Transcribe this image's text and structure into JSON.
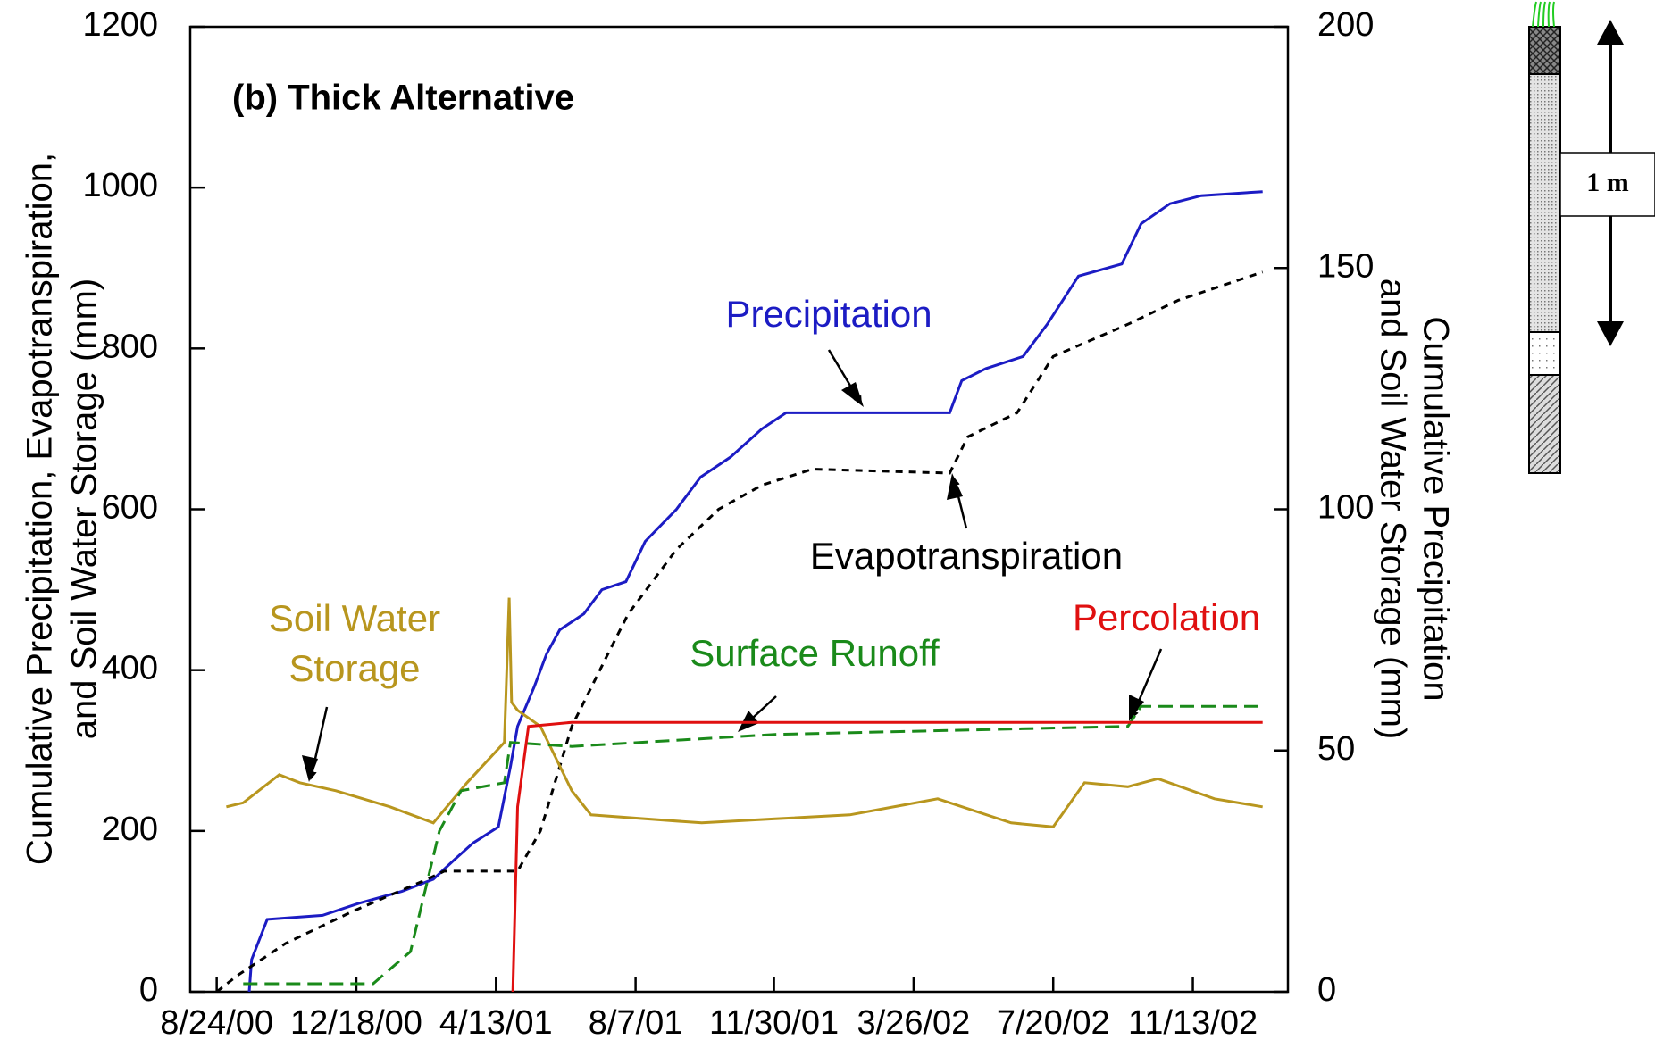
{
  "chart_data": {
    "type": "line",
    "title": "(b) Thick Alternative",
    "y_label_lines": [
      "Cumulative Precipitation, Evapotranspiration,",
      "and Soil Water Storage (mm)"
    ],
    "y2_label_lines": [
      "Cumulative Precipitation",
      "and Soil Water Storage (mm)"
    ],
    "xlim": [
      "2000-08-02",
      "2003-01-31"
    ],
    "xticks": [
      {
        "value": "2000-08-24",
        "label": "8/24/00"
      },
      {
        "value": "2000-12-18",
        "label": "12/18/00"
      },
      {
        "value": "2001-04-13",
        "label": "4/13/01"
      },
      {
        "value": "2001-08-07",
        "label": "8/7/01"
      },
      {
        "value": "2001-11-30",
        "label": "11/30/01"
      },
      {
        "value": "2002-03-26",
        "label": "3/26/02"
      },
      {
        "value": "2002-07-20",
        "label": "7/20/02"
      },
      {
        "value": "2002-11-13",
        "label": "11/13/02"
      }
    ],
    "ylim": [
      0,
      1200
    ],
    "yticks": [
      0,
      200,
      400,
      600,
      800,
      1000,
      1200
    ],
    "y2lim": [
      0,
      200
    ],
    "y2ticks": [
      0,
      50,
      100,
      150,
      200
    ],
    "series": [
      {
        "name": "Precipitation",
        "color": "#1c1cc4",
        "dash": "none",
        "x": [
          "2000-09-20",
          "2000-09-22",
          "2000-10-05",
          "2000-11-20",
          "2000-12-20",
          "2001-01-25",
          "2001-02-20",
          "2001-03-10",
          "2001-03-25",
          "2001-04-15",
          "2001-04-25",
          "2001-05-01",
          "2001-05-15",
          "2001-05-25",
          "2001-06-05",
          "2001-06-25",
          "2001-07-10",
          "2001-07-30",
          "2001-08-15",
          "2001-09-10",
          "2001-09-30",
          "2001-10-25",
          "2001-11-20",
          "2001-12-10",
          "2002-04-25",
          "2002-05-05",
          "2002-05-25",
          "2002-06-25",
          "2002-07-15",
          "2002-08-10",
          "2002-09-15",
          "2002-10-01",
          "2002-10-25",
          "2002-11-20",
          "2003-01-10"
        ],
        "values": [
          0,
          40,
          90,
          95,
          110,
          125,
          140,
          165,
          185,
          205,
          280,
          330,
          380,
          420,
          450,
          470,
          500,
          510,
          560,
          600,
          640,
          665,
          700,
          720,
          720,
          760,
          775,
          790,
          830,
          890,
          905,
          955,
          980,
          990,
          995
        ]
      },
      {
        "name": "Evapotranspiration",
        "color": "#000000",
        "dash": "8 7",
        "x": [
          "2000-08-24",
          "2000-09-10",
          "2000-10-20",
          "2000-12-15",
          "2001-02-15",
          "2001-03-01",
          "2001-05-01",
          "2001-05-20",
          "2001-06-15",
          "2001-07-15",
          "2001-08-01",
          "2001-09-10",
          "2001-10-15",
          "2001-11-20",
          "2002-01-01",
          "2002-04-25",
          "2002-05-10",
          "2002-06-20",
          "2002-07-20",
          "2002-09-20",
          "2002-11-01",
          "2003-01-10"
        ],
        "values": [
          0,
          20,
          60,
          100,
          140,
          150,
          150,
          200,
          330,
          420,
          470,
          550,
          600,
          630,
          650,
          645,
          690,
          720,
          790,
          830,
          860,
          895
        ]
      },
      {
        "name": "Soil Water Storage",
        "color": "#b8961e",
        "dash": "none",
        "x": [
          "2000-09-01",
          "2000-09-15",
          "2000-10-15",
          "2000-11-01",
          "2000-12-01",
          "2001-01-15",
          "2001-02-20",
          "2001-03-20",
          "2001-04-20",
          "2001-04-24",
          "2001-04-26",
          "2001-05-01",
          "2001-05-20",
          "2001-06-15",
          "2001-07-01",
          "2001-08-15",
          "2001-10-01",
          "2001-12-01",
          "2002-02-01",
          "2002-04-15",
          "2002-06-15",
          "2002-07-20",
          "2002-08-15",
          "2002-09-20",
          "2002-10-15",
          "2002-12-01",
          "2003-01-10"
        ],
        "values": [
          230,
          235,
          270,
          260,
          250,
          230,
          210,
          260,
          310,
          490,
          360,
          350,
          330,
          250,
          220,
          215,
          210,
          215,
          220,
          240,
          210,
          205,
          260,
          255,
          265,
          240,
          230
        ]
      },
      {
        "name": "Surface Runoff",
        "color": "#1a8a1a",
        "dash": "16 8",
        "x": [
          "2000-09-15",
          "2001-01-01",
          "2001-02-01",
          "2001-02-25",
          "2001-03-15",
          "2001-04-20",
          "2001-04-25",
          "2001-06-15",
          "2001-12-01",
          "2002-09-20",
          "2002-10-01",
          "2003-01-10"
        ],
        "values": [
          10,
          10,
          50,
          200,
          250,
          260,
          310,
          305,
          320,
          330,
          355,
          355
        ]
      },
      {
        "name": "Percolation",
        "color": "#e01010",
        "dash": "none",
        "x": [
          "2001-04-27",
          "2001-05-01",
          "2001-05-10",
          "2001-06-15",
          "2003-01-10"
        ],
        "values": [
          0,
          230,
          330,
          335,
          335
        ]
      }
    ]
  },
  "diagram": {
    "scale_label": "1 m"
  }
}
